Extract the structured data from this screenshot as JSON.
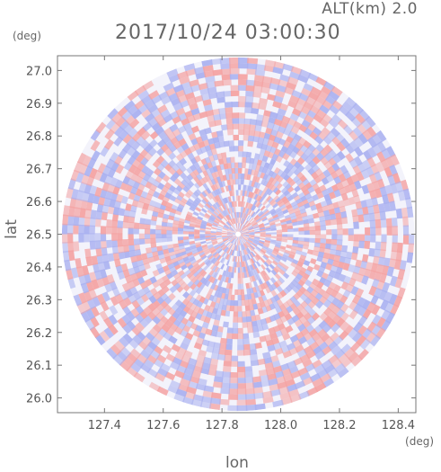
{
  "chart_data": {
    "type": "heatmap",
    "title": "2017/10/24 03:00:30",
    "subtitle": "ALT(km) 2.0",
    "xlabel": "lon",
    "ylabel": "lat",
    "x_unit": "(deg)",
    "y_unit": "(deg)",
    "xlim": [
      127.24,
      128.46
    ],
    "ylim": [
      25.955,
      27.045
    ],
    "x_ticks": [
      127.4,
      127.6,
      127.8,
      128.0,
      128.2,
      128.4
    ],
    "x_tick_labels": [
      "127.4",
      "127.6",
      "127.8",
      "128.0",
      "128.2",
      "128.4"
    ],
    "y_ticks": [
      26.0,
      26.1,
      26.2,
      26.3,
      26.4,
      26.5,
      26.6,
      26.7,
      26.8,
      26.9,
      27.0
    ],
    "y_tick_labels": [
      "26.0",
      "26.1",
      "26.2",
      "26.3",
      "26.4",
      "26.5",
      "26.6",
      "26.7",
      "26.8",
      "26.9",
      "27.0"
    ],
    "radar_center": {
      "lon": 127.855,
      "lat": 26.5
    },
    "radar_range_deg": {
      "lon": 0.6,
      "lat": 0.54
    },
    "colors": {
      "positive": "#f4a3a3",
      "negative": "#a9b0f0",
      "neutral": "#f3f3fb"
    },
    "grid": false
  }
}
